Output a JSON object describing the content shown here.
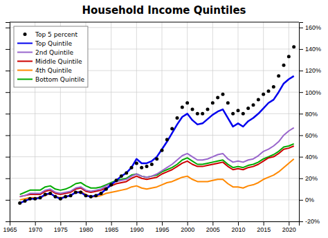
{
  "chart_data": {
    "type": "line",
    "title": "Household Income Quintiles",
    "x": [
      1967,
      1968,
      1969,
      1970,
      1971,
      1972,
      1973,
      1974,
      1975,
      1976,
      1977,
      1978,
      1979,
      1980,
      1981,
      1982,
      1983,
      1984,
      1985,
      1986,
      1987,
      1988,
      1989,
      1990,
      1991,
      1992,
      1993,
      1994,
      1995,
      1996,
      1997,
      1998,
      1999,
      2000,
      2001,
      2002,
      2003,
      2004,
      2005,
      2006,
      2007,
      2008,
      2009,
      2010,
      2011,
      2012,
      2013,
      2014,
      2015,
      2016,
      2017,
      2018,
      2019,
      2020,
      2021
    ],
    "series": [
      {
        "name": "Top 5 percent",
        "color": "#000000",
        "marker": "circle",
        "line_style": "none",
        "values": [
          -3,
          -1,
          1,
          1,
          2,
          5,
          6,
          3,
          1,
          3,
          4,
          7,
          7,
          4,
          3,
          4,
          6,
          10,
          14,
          18,
          22,
          25,
          30,
          34,
          30,
          31,
          33,
          38,
          46,
          56,
          66,
          76,
          86,
          90,
          84,
          80,
          80,
          84,
          90,
          95,
          98,
          90,
          80,
          83,
          80,
          85,
          88,
          93,
          98,
          101,
          105,
          115,
          125,
          133,
          142
        ]
      },
      {
        "name": "Top Quintile",
        "color": "#0000ee",
        "values": [
          -3,
          -1,
          1,
          1,
          2,
          5,
          6,
          3,
          1,
          3,
          4,
          7,
          7,
          4,
          3,
          4,
          6,
          10,
          14,
          18,
          22,
          25,
          30,
          38,
          34,
          34,
          36,
          40,
          47,
          54,
          62,
          70,
          77,
          80,
          74,
          70,
          71,
          75,
          79,
          82,
          84,
          76,
          68,
          71,
          68,
          73,
          76,
          80,
          85,
          90,
          93,
          100,
          108,
          112,
          115
        ]
      },
      {
        "name": "2nd Quintile",
        "color": "#9966cc",
        "values": [
          3,
          4,
          6,
          6,
          6,
          9,
          10,
          7,
          6,
          7,
          8,
          11,
          12,
          9,
          8,
          9,
          10,
          13,
          15,
          17,
          18,
          19,
          22,
          24,
          22,
          21,
          22,
          24,
          27,
          30,
          33,
          37,
          41,
          43,
          40,
          37,
          37,
          38,
          40,
          42,
          43,
          38,
          35,
          36,
          35,
          37,
          38,
          41,
          45,
          47,
          50,
          54,
          60,
          64,
          67
        ]
      },
      {
        "name": "Middle Quintile",
        "color": "#cc0000",
        "values": [
          3,
          4,
          5,
          5,
          5,
          8,
          9,
          6,
          5,
          6,
          7,
          10,
          11,
          8,
          7,
          8,
          9,
          11,
          13,
          15,
          16,
          17,
          20,
          22,
          20,
          19,
          20,
          21,
          24,
          26,
          28,
          31,
          34,
          36,
          33,
          31,
          31,
          32,
          33,
          34,
          35,
          31,
          28,
          29,
          28,
          30,
          31,
          33,
          36,
          39,
          40,
          43,
          47,
          48,
          50
        ]
      },
      {
        "name": "4th Quintile",
        "color": "#ff8800",
        "values": [
          0,
          1,
          2,
          2,
          2,
          4,
          6,
          3,
          2,
          3,
          4,
          7,
          8,
          5,
          3,
          3,
          4,
          6,
          7,
          8,
          9,
          10,
          12,
          13,
          11,
          10,
          11,
          12,
          14,
          16,
          17,
          19,
          21,
          22,
          19,
          17,
          17,
          17,
          18,
          19,
          19,
          15,
          12,
          12,
          11,
          13,
          14,
          16,
          19,
          21,
          23,
          26,
          30,
          34,
          38
        ]
      },
      {
        "name": "Bottom Quintile",
        "color": "#00aa00",
        "values": [
          5,
          7,
          9,
          9,
          9,
          12,
          13,
          10,
          9,
          10,
          12,
          15,
          16,
          13,
          11,
          11,
          12,
          14,
          16,
          18,
          19,
          20,
          23,
          24,
          22,
          21,
          22,
          23,
          26,
          28,
          30,
          33,
          37,
          39,
          36,
          33,
          33,
          34,
          35,
          36,
          37,
          33,
          30,
          31,
          30,
          32,
          33,
          35,
          38,
          40,
          42,
          45,
          49,
          50,
          52
        ]
      }
    ],
    "xlim": [
      1965,
      2022
    ],
    "xticks": [
      1965,
      1970,
      1975,
      1980,
      1985,
      1990,
      1995,
      2000,
      2005,
      2010,
      2015,
      2020
    ],
    "ylim": [
      -20,
      165
    ],
    "yticks": [
      {
        "value": -20,
        "label": "-20%"
      },
      {
        "value": 0,
        "label": "0%"
      },
      {
        "value": 20,
        "label": "20%"
      },
      {
        "value": 40,
        "label": "40%"
      },
      {
        "value": 60,
        "label": "60%"
      },
      {
        "value": 80,
        "label": "80%"
      },
      {
        "value": 100,
        "label": "100%"
      },
      {
        "value": 120,
        "label": "120%"
      },
      {
        "value": 140,
        "label": "140%"
      },
      {
        "value": 160,
        "label": "160%"
      }
    ],
    "grid": true,
    "legend": "upper left"
  }
}
